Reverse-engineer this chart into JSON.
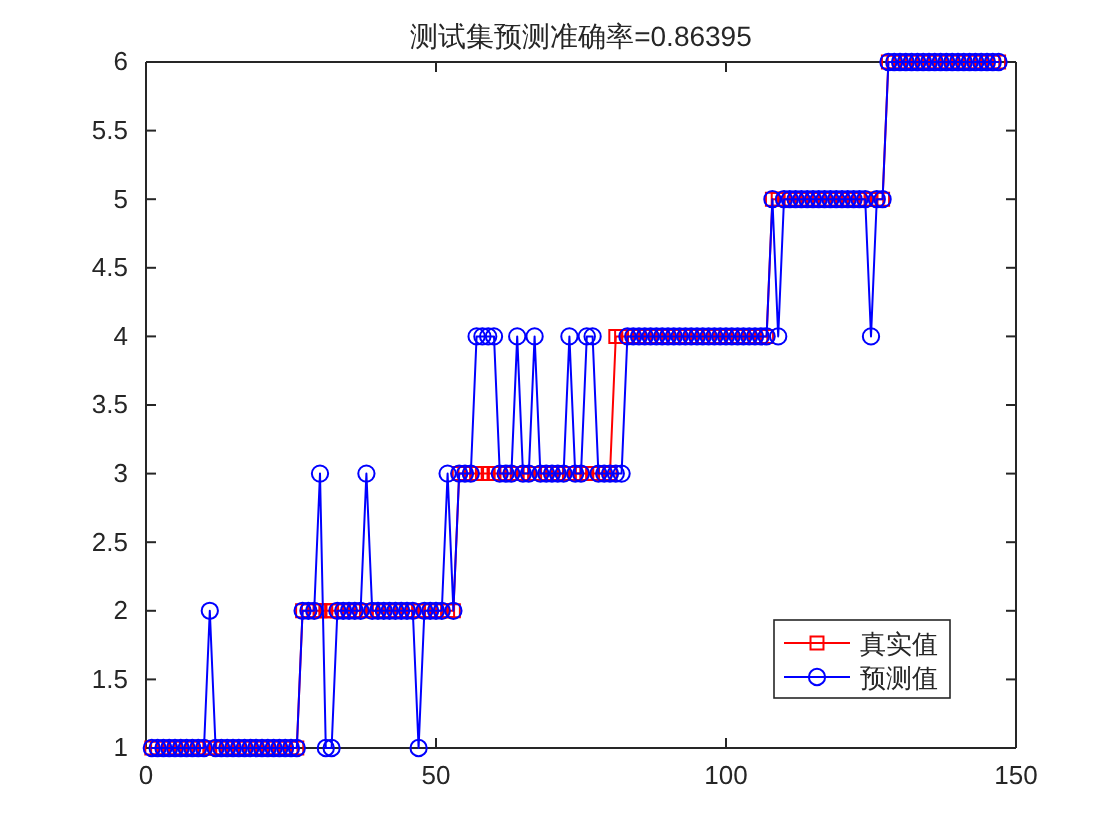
{
  "chart_data": {
    "type": "line",
    "title": "测试集预测准确率=0.86395",
    "x": [
      1,
      2,
      3,
      4,
      5,
      6,
      7,
      8,
      9,
      10,
      11,
      12,
      13,
      14,
      15,
      16,
      17,
      18,
      19,
      20,
      21,
      22,
      23,
      24,
      25,
      26,
      27,
      28,
      29,
      30,
      31,
      32,
      33,
      34,
      35,
      36,
      37,
      38,
      39,
      40,
      41,
      42,
      43,
      44,
      45,
      46,
      47,
      48,
      49,
      50,
      51,
      52,
      53,
      54,
      55,
      56,
      57,
      58,
      59,
      60,
      61,
      62,
      63,
      64,
      65,
      66,
      67,
      68,
      69,
      70,
      71,
      72,
      73,
      74,
      75,
      76,
      77,
      78,
      79,
      80,
      81,
      82,
      83,
      84,
      85,
      86,
      87,
      88,
      89,
      90,
      91,
      92,
      93,
      94,
      95,
      96,
      97,
      98,
      99,
      100,
      101,
      102,
      103,
      104,
      105,
      106,
      107,
      108,
      109,
      110,
      111,
      112,
      113,
      114,
      115,
      116,
      117,
      118,
      119,
      120,
      121,
      122,
      123,
      124,
      125,
      126,
      127,
      128,
      129,
      130,
      131,
      132,
      133,
      134,
      135,
      136,
      137,
      138,
      139,
      140,
      141,
      142,
      143,
      144,
      145,
      146,
      147
    ],
    "series": [
      {
        "name": "真实值",
        "color": "#ff0000",
        "marker": "square",
        "values": [
          1,
          1,
          1,
          1,
          1,
          1,
          1,
          1,
          1,
          1,
          1,
          1,
          1,
          1,
          1,
          1,
          1,
          1,
          1,
          1,
          1,
          1,
          1,
          1,
          1,
          1,
          2,
          2,
          2,
          2,
          2,
          2,
          2,
          2,
          2,
          2,
          2,
          2,
          2,
          2,
          2,
          2,
          2,
          2,
          2,
          2,
          2,
          2,
          2,
          2,
          2,
          2,
          2,
          3,
          3,
          3,
          3,
          3,
          3,
          3,
          3,
          3,
          3,
          3,
          3,
          3,
          3,
          3,
          3,
          3,
          3,
          3,
          3,
          3,
          3,
          3,
          3,
          3,
          3,
          3,
          4,
          4,
          4,
          4,
          4,
          4,
          4,
          4,
          4,
          4,
          4,
          4,
          4,
          4,
          4,
          4,
          4,
          4,
          4,
          4,
          4,
          4,
          4,
          4,
          4,
          4,
          4,
          5,
          5,
          5,
          5,
          5,
          5,
          5,
          5,
          5,
          5,
          5,
          5,
          5,
          5,
          5,
          5,
          5,
          5,
          5,
          5,
          6,
          6,
          6,
          6,
          6,
          6,
          6,
          6,
          6,
          6,
          6,
          6,
          6,
          6,
          6,
          6,
          6,
          6,
          6,
          6
        ]
      },
      {
        "name": "预测值",
        "color": "#0000ff",
        "marker": "circle",
        "values": [
          1,
          1,
          1,
          1,
          1,
          1,
          1,
          1,
          1,
          1,
          2,
          1,
          1,
          1,
          1,
          1,
          1,
          1,
          1,
          1,
          1,
          1,
          1,
          1,
          1,
          1,
          2,
          2,
          2,
          3,
          1,
          1,
          2,
          2,
          2,
          2,
          2,
          3,
          2,
          2,
          2,
          2,
          2,
          2,
          2,
          2,
          1,
          2,
          2,
          2,
          2,
          3,
          2,
          3,
          3,
          3,
          4,
          4,
          4,
          4,
          3,
          3,
          3,
          4,
          3,
          3,
          4,
          3,
          3,
          3,
          3,
          3,
          4,
          3,
          3,
          4,
          4,
          3,
          3,
          3,
          3,
          3,
          4,
          4,
          4,
          4,
          4,
          4,
          4,
          4,
          4,
          4,
          4,
          4,
          4,
          4,
          4,
          4,
          4,
          4,
          4,
          4,
          4,
          4,
          4,
          4,
          4,
          5,
          4,
          5,
          5,
          5,
          5,
          5,
          5,
          5,
          5,
          5,
          5,
          5,
          5,
          5,
          5,
          5,
          4,
          5,
          5,
          6,
          6,
          6,
          6,
          6,
          6,
          6,
          6,
          6,
          6,
          6,
          6,
          6,
          6,
          6,
          6,
          6,
          6,
          6,
          6
        ]
      }
    ],
    "xlim": [
      0,
      150
    ],
    "xticks": [
      0,
      50,
      100,
      150
    ],
    "ylim": [
      1,
      6
    ],
    "yticks": [
      1,
      1.5,
      2,
      2.5,
      3,
      3.5,
      4,
      4.5,
      5,
      5.5,
      6
    ],
    "legend": "bottom right"
  }
}
